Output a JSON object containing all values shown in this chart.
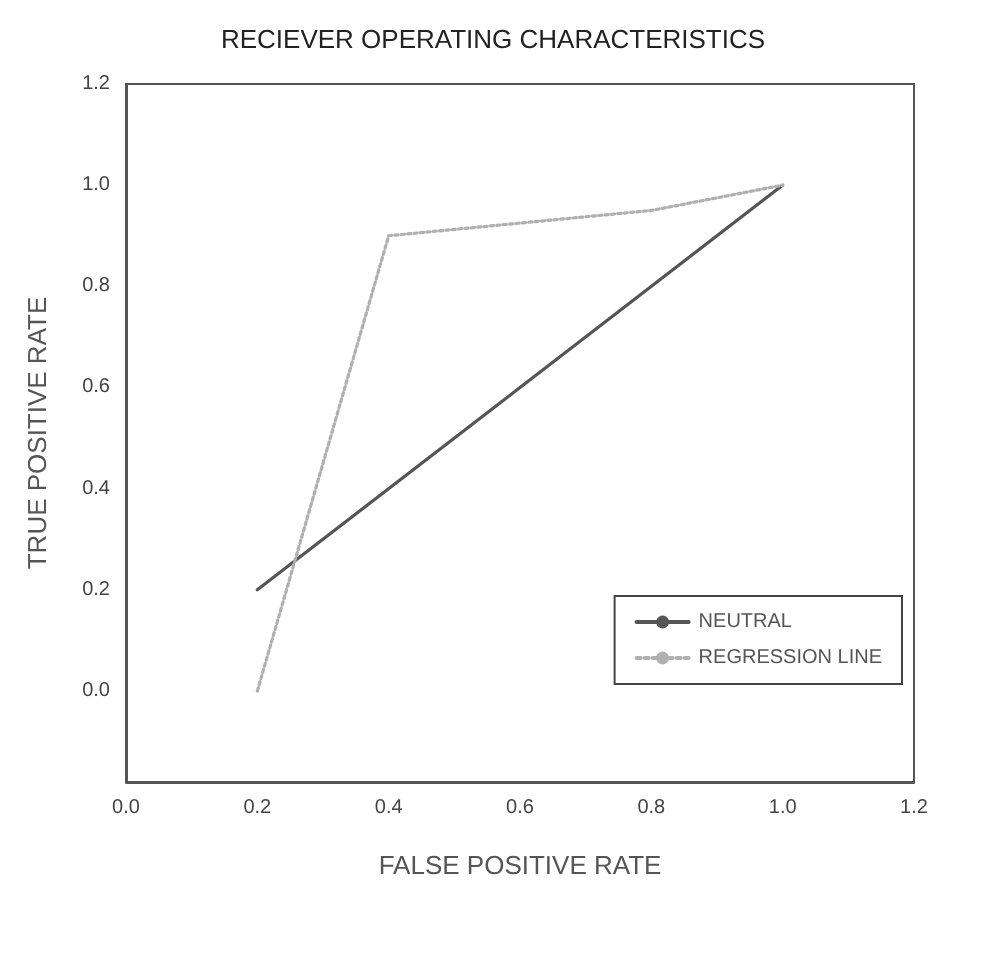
{
  "chart_data": {
    "type": "line",
    "title": "RECIEVER OPERATING CHARACTERISTICS",
    "xlabel": "FALSE POSITIVE RATE",
    "ylabel": "TRUE POSITIVE RATE",
    "series": [
      {
        "name": "NEUTRAL",
        "color": "#555555",
        "x": [
          0.2,
          1.0
        ],
        "values": [
          0.2,
          1.0
        ],
        "line_style": "solid"
      },
      {
        "name": "REGRESSION LINE",
        "color": "#b0b0b0",
        "x": [
          0.2,
          0.4,
          0.8,
          1.0
        ],
        "values": [
          0.0,
          0.9,
          0.95,
          1.0
        ],
        "line_style": "dotted"
      }
    ],
    "xlim": [
      0,
      1.2
    ],
    "ylim": [
      -0.18,
      1.2
    ],
    "xticks": [
      {
        "value": 0,
        "label": "0.0"
      },
      {
        "value": 0.2,
        "label": "0.2"
      },
      {
        "value": 0.4,
        "label": "0.4"
      },
      {
        "value": 0.6,
        "label": "0.6"
      },
      {
        "value": 0.8,
        "label": "0.8"
      },
      {
        "value": 1.0,
        "label": "1.0"
      },
      {
        "value": 1.2,
        "label": "1.2"
      }
    ],
    "yticks": [
      {
        "value": 0,
        "label": "0.0"
      },
      {
        "value": 0.2,
        "label": "0.2"
      },
      {
        "value": 0.4,
        "label": "0.4"
      },
      {
        "value": 0.6,
        "label": "0.6"
      },
      {
        "value": 0.8,
        "label": "0.8"
      },
      {
        "value": 1.0,
        "label": "1.0"
      },
      {
        "value": 1.2,
        "label": "1.2"
      }
    ],
    "grid": false,
    "legend": "bottom right",
    "marker": "none"
  }
}
